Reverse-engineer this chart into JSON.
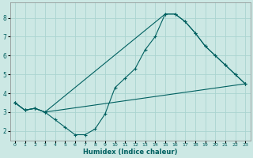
{
  "xlabel": "Humidex (Indice chaleur)",
  "bg_color": "#cce8e4",
  "grid_color": "#aad4d0",
  "line_color": "#006060",
  "xlim": [
    -0.5,
    23.5
  ],
  "ylim": [
    1.5,
    8.8
  ],
  "yticks": [
    2,
    3,
    4,
    5,
    6,
    7,
    8
  ],
  "xticks": [
    0,
    1,
    2,
    3,
    4,
    5,
    6,
    7,
    8,
    9,
    10,
    11,
    12,
    13,
    14,
    15,
    16,
    17,
    18,
    19,
    20,
    21,
    22,
    23
  ],
  "line1_x": [
    0,
    1,
    2,
    3,
    4,
    5,
    6,
    7,
    8,
    9,
    10,
    11,
    12,
    13,
    14,
    15,
    16,
    17,
    18,
    19,
    20,
    21,
    22,
    23
  ],
  "line1_y": [
    3.5,
    3.1,
    3.2,
    3.0,
    2.6,
    2.2,
    1.8,
    1.8,
    2.1,
    2.9,
    4.3,
    4.8,
    5.3,
    6.3,
    7.0,
    8.2,
    8.2,
    7.8,
    7.2,
    6.5,
    6.0,
    5.5,
    5.0,
    4.5
  ],
  "line2_x": [
    0,
    1,
    2,
    3,
    15,
    16,
    17,
    18,
    19,
    20,
    21,
    22,
    23
  ],
  "line2_y": [
    3.5,
    3.1,
    3.2,
    3.0,
    8.2,
    8.2,
    7.8,
    7.2,
    6.5,
    6.0,
    5.5,
    5.0,
    4.5
  ],
  "line3_x": [
    0,
    1,
    2,
    3,
    23
  ],
  "line3_y": [
    3.5,
    3.1,
    3.2,
    3.0,
    4.5
  ]
}
